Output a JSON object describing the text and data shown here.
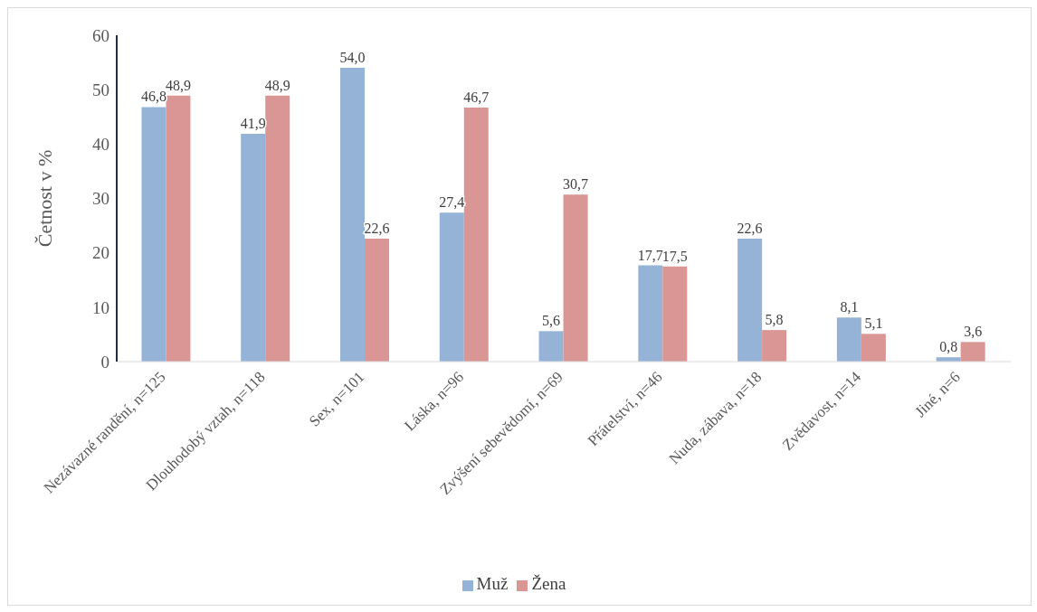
{
  "chart_data": {
    "type": "bar",
    "ylabel": "Četnost v %",
    "categories": [
      "Nezávazné randění, n=125",
      "Dlouhodobý vztah, n=118",
      "Sex, n=101",
      "Láska, n=96",
      "Zvýšení sebevědomí, n=69",
      "Přátelství, n=46",
      "Nuda, zábava, n=18",
      "Zvědavost, n=14",
      "Jiné, n=6"
    ],
    "series": [
      {
        "name": "Muž",
        "color": "#95b3d7",
        "values": [
          46.8,
          41.9,
          54.0,
          27.4,
          5.6,
          17.7,
          22.6,
          8.1,
          0.8
        ],
        "value_labels": [
          "46,8",
          "41,9",
          "54,0",
          "27,4",
          "5,6",
          "17,7",
          "22,6",
          "8,1",
          "0,8"
        ]
      },
      {
        "name": "Žena",
        "color": "#d99694",
        "values": [
          48.9,
          48.9,
          22.6,
          46.7,
          30.7,
          17.5,
          5.8,
          5.1,
          3.6
        ],
        "value_labels": [
          "48,9",
          "48,9",
          "22,6",
          "46,7",
          "30,7",
          "17,5",
          "5,8",
          "5,1",
          "3,6"
        ]
      }
    ],
    "ylim": [
      0,
      60
    ],
    "yticks": [
      0,
      10,
      20,
      30,
      40,
      50,
      60
    ],
    "grid": false,
    "legend": "bottom"
  }
}
